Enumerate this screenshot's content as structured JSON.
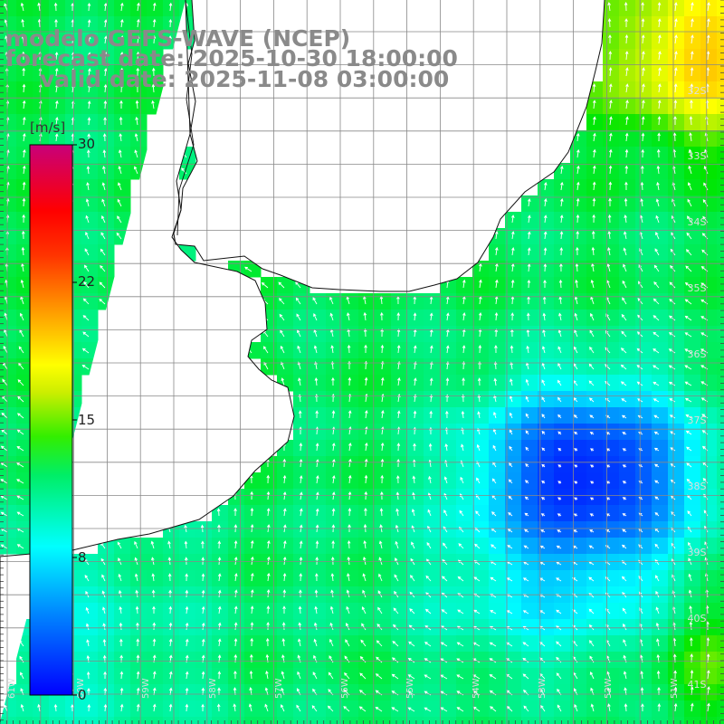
{
  "title": {
    "line1": "modelo GEFS-WAVE (NCEP)",
    "line2": "forecast date: 2025-10-30 18:00:00",
    "line3": "valid date: 2025-11-08 03:00:00"
  },
  "colorbar": {
    "unit": "[m/s]",
    "labels": [
      "30",
      "22",
      "15",
      "8",
      "0"
    ],
    "values": [
      30,
      22,
      15,
      8,
      0
    ],
    "colors": [
      "#0000ff",
      "#00ffff",
      "#00ee00",
      "#ffff00",
      "#ff8800",
      "#ff0000",
      "#c8007a"
    ]
  },
  "map": {
    "lat_labels": [
      "32S",
      "33S",
      "34S",
      "35S",
      "36S",
      "37S",
      "38S",
      "39S",
      "40S",
      "41S"
    ],
    "lon_labels": [
      "61W",
      "60W",
      "59W",
      "58W",
      "57W",
      "56W",
      "55W",
      "54W",
      "53W",
      "52W",
      "51W"
    ],
    "land_color": "#ffffff",
    "grid_color": "#888888"
  }
}
